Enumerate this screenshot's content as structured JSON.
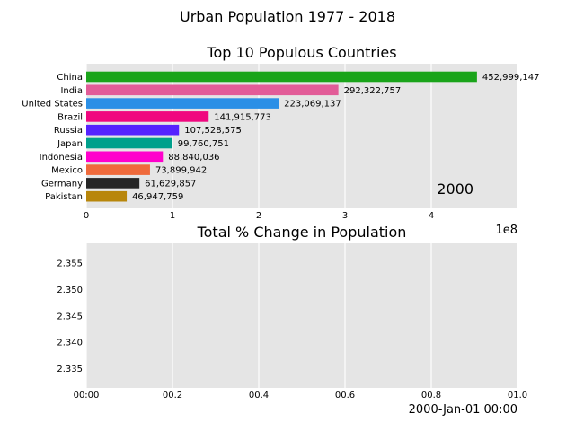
{
  "suptitle": "Urban Population 1977 - 2018",
  "chart_data": [
    {
      "type": "bar",
      "orientation": "horizontal",
      "title": "Top 10 Populous Countries",
      "categories": [
        "China",
        "India",
        "United States",
        "Brazil",
        "Russia",
        "Japan",
        "Indonesia",
        "Mexico",
        "Germany",
        "Pakistan"
      ],
      "values": [
        452999147,
        292322757,
        223069137,
        141915773,
        107528575,
        99760751,
        88840036,
        73899942,
        61629857,
        46947759
      ],
      "value_labels": [
        "452,999,147",
        "292,322,757",
        "223,069,137",
        "141,915,773",
        "107,528,575",
        "99,760,751",
        "88,840,036",
        "73,899,942",
        "61,629,857",
        "46,947,759"
      ],
      "colors": [
        "#1aa41a",
        "#e25c98",
        "#2b8fe6",
        "#f0077f",
        "#5522ff",
        "#00a08c",
        "#ff00cc",
        "#ef6a3b",
        "#262626",
        "#b8860b"
      ],
      "xlim": [
        0,
        500000000
      ],
      "xticks": [
        0,
        100000000,
        200000000,
        300000000,
        400000000
      ],
      "xtick_labels": [
        "0",
        "1",
        "2",
        "3",
        "4"
      ],
      "offset_text": "1e8",
      "annotation": "2000",
      "grid": true
    },
    {
      "type": "line",
      "title": "Total % Change in Population",
      "series": [],
      "ylim": [
        2.3313,
        2.3588
      ],
      "yticks": [
        2.335,
        2.34,
        2.345,
        2.35,
        2.355
      ],
      "ytick_labels": [
        "2.335",
        "2.340",
        "2.345",
        "2.350",
        "2.355"
      ],
      "xticks": [
        0,
        0.2,
        0.4,
        0.6,
        0.8,
        1.0
      ],
      "xtick_labels": [
        "00:00",
        "00.2",
        "00.4",
        "00.6",
        "00.8",
        "01.0"
      ],
      "annotation": "2000-Jan-01 00:00",
      "grid": true
    }
  ]
}
